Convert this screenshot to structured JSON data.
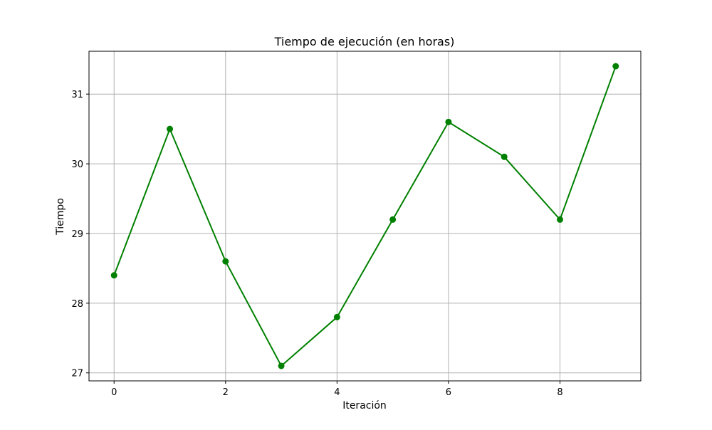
{
  "chart_data": {
    "type": "line",
    "title": "Tiempo de ejecución (en horas)",
    "xlabel": "Iteración",
    "ylabel": "Tiempo",
    "x": [
      0,
      1,
      2,
      3,
      4,
      5,
      6,
      7,
      8,
      9
    ],
    "series": [
      {
        "values": [
          28.4,
          30.5,
          28.6,
          27.1,
          27.8,
          29.2,
          30.6,
          30.1,
          29.2,
          31.4
        ],
        "color": "#008000",
        "marker": "circle"
      }
    ],
    "xticks": [
      0,
      2,
      4,
      6,
      8
    ],
    "yticks": [
      27,
      28,
      29,
      30,
      31
    ],
    "xlim": [
      -0.45,
      9.45
    ],
    "ylim": [
      26.885,
      31.615
    ],
    "grid": true,
    "legend": false
  }
}
